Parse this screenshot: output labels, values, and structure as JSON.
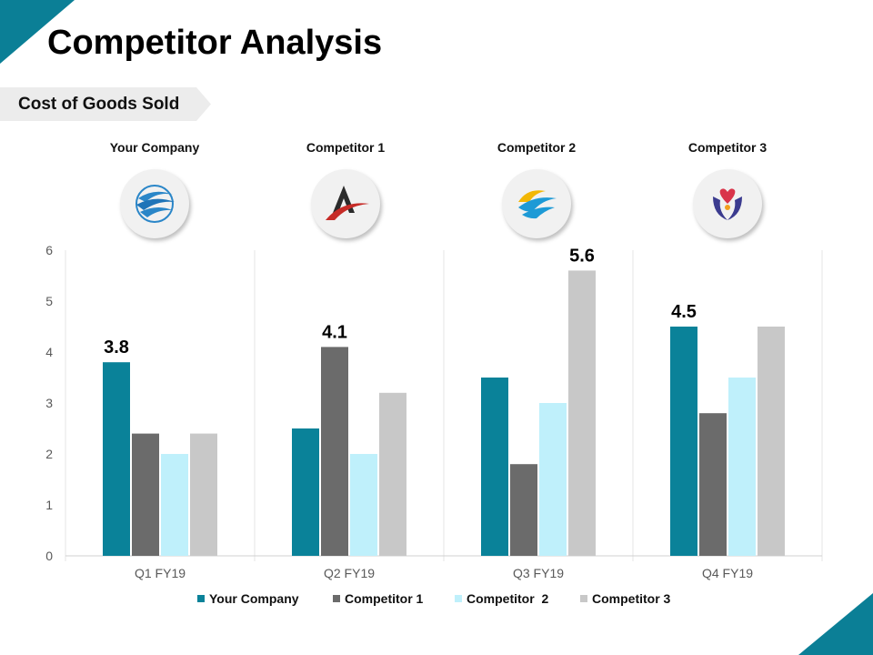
{
  "page": {
    "title": "Competitor Analysis",
    "section_tag": "Cost of Goods Sold",
    "accent_color": "#0b7f96"
  },
  "companies": [
    {
      "name": "Your Company",
      "logo": "wave-swirl-icon"
    },
    {
      "name": "Competitor 1",
      "logo": "arrow-a-icon"
    },
    {
      "name": "Competitor 2",
      "logo": "sun-wave-icon"
    },
    {
      "name": "Competitor 3",
      "logo": "heart-hands-icon"
    }
  ],
  "chart_data": {
    "type": "bar",
    "categories": [
      "Q1 FY19",
      "Q2 FY19",
      "Q3 FY19",
      "Q4 FY19"
    ],
    "series": [
      {
        "name": "Your Company",
        "color": "#0a8299",
        "values": [
          3.8,
          2.5,
          3.5,
          4.5
        ]
      },
      {
        "name": "Competitor 1",
        "color": "#6b6b6b",
        "values": [
          2.4,
          4.1,
          1.8,
          2.8
        ]
      },
      {
        "name": "Competitor  2",
        "color": "#bff0fb",
        "values": [
          2.0,
          2.0,
          3.0,
          3.5
        ]
      },
      {
        "name": "Competitor 3",
        "color": "#c8c8c8",
        "values": [
          2.4,
          3.2,
          5.6,
          4.5
        ]
      }
    ],
    "data_labels": [
      {
        "category": "Q1 FY19",
        "series": "Your Company",
        "text": "3.8"
      },
      {
        "category": "Q2 FY19",
        "series": "Competitor 1",
        "text": "4.1"
      },
      {
        "category": "Q3 FY19",
        "series": "Competitor 3",
        "text": "5.6"
      },
      {
        "category": "Q4 FY19",
        "series": "Your Company",
        "text": "4.5"
      }
    ],
    "ylim": [
      0,
      6
    ],
    "yticks": [
      "0",
      "1",
      "2",
      "3",
      "4",
      "5",
      "6"
    ],
    "xlabel": "",
    "ylabel": "",
    "grid": "vertical category separators",
    "legend_position": "bottom"
  }
}
